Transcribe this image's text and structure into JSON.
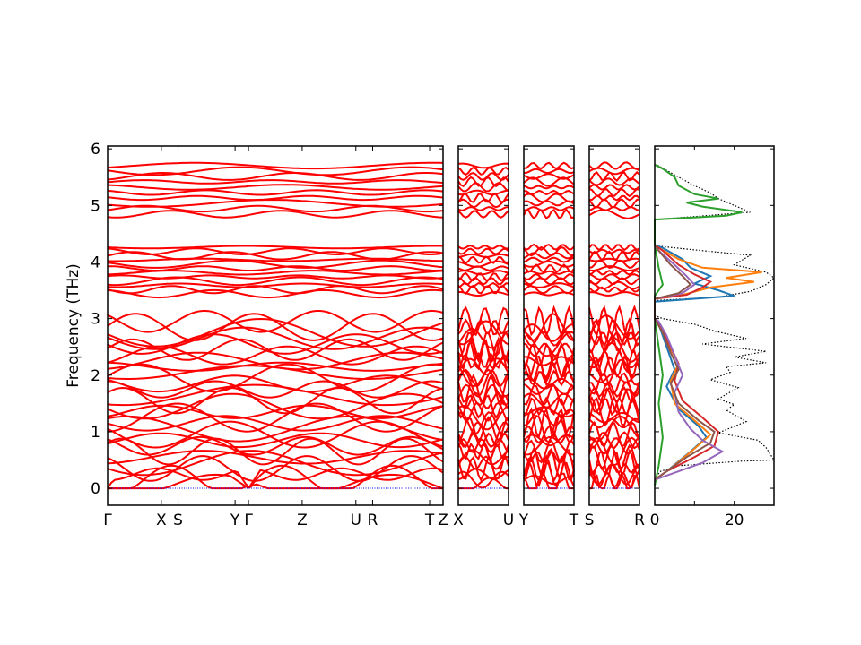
{
  "chart_data": [
    {
      "type": "line",
      "panel": "band-structure",
      "ylabel": "Frequency (THz)",
      "ylim": [
        -0.3,
        6.05
      ],
      "yticks": [
        0,
        1,
        2,
        3,
        4,
        5,
        6
      ],
      "segments": [
        {
          "labels": [
            "Γ",
            "X",
            "S",
            "Y",
            "Γ",
            "Z",
            "U",
            "R",
            "T",
            "Z"
          ],
          "positions": [
            0,
            0.16,
            0.21,
            0.38,
            0.42,
            0.58,
            0.74,
            0.79,
            0.96,
            1.0
          ]
        },
        {
          "labels": [
            "X",
            "U"
          ],
          "positions": [
            0,
            1
          ]
        },
        {
          "labels": [
            "Y",
            "T"
          ],
          "positions": [
            0,
            1
          ]
        },
        {
          "labels": [
            "S",
            "R"
          ],
          "positions": [
            0,
            1
          ]
        }
      ],
      "band_color": "#ff0000",
      "zero_line_color": "#0000ff",
      "band_groups": [
        {
          "range": [
            0.0,
            3.0
          ],
          "count": 30
        },
        {
          "range": [
            3.4,
            4.3
          ],
          "count": 12
        },
        {
          "range": [
            4.8,
            5.75
          ],
          "count": 10
        }
      ]
    },
    {
      "type": "line",
      "panel": "dos",
      "xlim": [
        0,
        30
      ],
      "xticks": [
        0,
        20
      ],
      "ylim": [
        -0.3,
        6.05
      ],
      "series": [
        {
          "color": "#000000",
          "style": "dotted",
          "points": [
            [
              0.0,
              0.1
            ],
            [
              0.3,
              0.2
            ],
            [
              1.5,
              0.3
            ],
            [
              6,
              0.4
            ],
            [
              22,
              0.48
            ],
            [
              30,
              0.5
            ],
            [
              28,
              0.72
            ],
            [
              26,
              0.85
            ],
            [
              16,
              0.98
            ],
            [
              23,
              1.18
            ],
            [
              18,
              1.38
            ],
            [
              20,
              1.48
            ],
            [
              16,
              1.58
            ],
            [
              21,
              1.78
            ],
            [
              14,
              1.92
            ],
            [
              19,
              2.05
            ],
            [
              18,
              2.15
            ],
            [
              28,
              2.22
            ],
            [
              20,
              2.32
            ],
            [
              28,
              2.42
            ],
            [
              12,
              2.55
            ],
            [
              23,
              2.65
            ],
            [
              15,
              2.78
            ],
            [
              10,
              2.9
            ],
            [
              2,
              3.0
            ],
            [
              0,
              3.05
            ],
            [
              0,
              3.32
            ],
            [
              16,
              3.38
            ],
            [
              24,
              3.48
            ],
            [
              28,
              3.6
            ],
            [
              30,
              3.72
            ],
            [
              28,
              3.82
            ],
            [
              20,
              3.95
            ],
            [
              24,
              4.12
            ],
            [
              12,
              4.2
            ],
            [
              1,
              4.28
            ],
            [
              0,
              4.3
            ],
            [
              0,
              4.75
            ],
            [
              24,
              4.88
            ],
            [
              20,
              5.0
            ],
            [
              16,
              5.12
            ],
            [
              14,
              5.22
            ],
            [
              10,
              5.35
            ],
            [
              6,
              5.5
            ],
            [
              3,
              5.62
            ],
            [
              1,
              5.7
            ],
            [
              0,
              5.72
            ]
          ]
        },
        {
          "color": "#1f77b4",
          "style": "solid",
          "points": [
            [
              0,
              0.15
            ],
            [
              3,
              0.3
            ],
            [
              9,
              0.65
            ],
            [
              13,
              0.9
            ],
            [
              11,
              1.1
            ],
            [
              6,
              1.4
            ],
            [
              3,
              1.8
            ],
            [
              5,
              2.1
            ],
            [
              3,
              2.5
            ],
            [
              1,
              2.9
            ],
            [
              0,
              3.0
            ],
            [
              0,
              3.3
            ],
            [
              10,
              3.35
            ],
            [
              20,
              3.4
            ],
            [
              16,
              3.5
            ],
            [
              10,
              3.62
            ],
            [
              14,
              3.75
            ],
            [
              9,
              3.9
            ],
            [
              7,
              4.05
            ],
            [
              2,
              4.25
            ],
            [
              0,
              4.3
            ]
          ]
        },
        {
          "color": "#ff7f0e",
          "style": "solid",
          "points": [
            [
              0,
              0.15
            ],
            [
              4,
              0.35
            ],
            [
              10,
              0.7
            ],
            [
              14,
              0.95
            ],
            [
              10,
              1.2
            ],
            [
              5,
              1.5
            ],
            [
              4,
              1.9
            ],
            [
              6,
              2.2
            ],
            [
              3,
              2.6
            ],
            [
              1,
              2.9
            ],
            [
              0,
              3.0
            ],
            [
              0,
              3.35
            ],
            [
              6,
              3.4
            ],
            [
              14,
              3.55
            ],
            [
              25,
              3.65
            ],
            [
              18,
              3.72
            ],
            [
              27,
              3.82
            ],
            [
              12,
              3.9
            ],
            [
              6,
              4.05
            ],
            [
              1,
              4.25
            ],
            [
              0,
              4.3
            ]
          ]
        },
        {
          "color": "#2ca02c",
          "style": "solid",
          "points": [
            [
              0,
              0.05
            ],
            [
              1,
              0.4
            ],
            [
              2,
              0.9
            ],
            [
              1,
              1.5
            ],
            [
              2,
              2.0
            ],
            [
              1,
              2.5
            ],
            [
              0,
              3.0
            ],
            [
              0,
              3.4
            ],
            [
              2,
              3.6
            ],
            [
              1,
              3.9
            ],
            [
              0,
              4.3
            ],
            [
              0,
              4.75
            ],
            [
              18,
              4.82
            ],
            [
              22,
              4.88
            ],
            [
              12,
              4.98
            ],
            [
              8,
              5.05
            ],
            [
              16,
              5.12
            ],
            [
              10,
              5.2
            ],
            [
              6,
              5.35
            ],
            [
              5,
              5.5
            ],
            [
              2,
              5.65
            ],
            [
              0,
              5.72
            ]
          ]
        },
        {
          "color": "#d62728",
          "style": "solid",
          "points": [
            [
              0,
              0.15
            ],
            [
              3,
              0.3
            ],
            [
              10,
              0.55
            ],
            [
              15,
              0.75
            ],
            [
              16,
              1.0
            ],
            [
              12,
              1.25
            ],
            [
              7,
              1.55
            ],
            [
              5,
              1.9
            ],
            [
              6,
              2.2
            ],
            [
              4,
              2.5
            ],
            [
              2,
              2.8
            ],
            [
              0,
              3.0
            ],
            [
              0,
              3.35
            ],
            [
              8,
              3.42
            ],
            [
              12,
              3.55
            ],
            [
              14,
              3.65
            ],
            [
              10,
              3.78
            ],
            [
              6,
              3.95
            ],
            [
              2,
              4.2
            ],
            [
              0,
              4.3
            ]
          ]
        },
        {
          "color": "#9467bd",
          "style": "solid",
          "points": [
            [
              0,
              0.15
            ],
            [
              4,
              0.25
            ],
            [
              12,
              0.45
            ],
            [
              17,
              0.65
            ],
            [
              12,
              0.85
            ],
            [
              9,
              1.05
            ],
            [
              6,
              1.35
            ],
            [
              5,
              1.7
            ],
            [
              7,
              2.0
            ],
            [
              5,
              2.35
            ],
            [
              3,
              2.7
            ],
            [
              1,
              2.95
            ],
            [
              0,
              3.0
            ],
            [
              0,
              3.35
            ],
            [
              7,
              3.45
            ],
            [
              10,
              3.6
            ],
            [
              8,
              3.75
            ],
            [
              5,
              3.95
            ],
            [
              1,
              4.2
            ],
            [
              0,
              4.3
            ]
          ]
        },
        {
          "color": "#8c564b",
          "style": "solid",
          "points": [
            [
              0,
              0.15
            ],
            [
              3,
              0.3
            ],
            [
              8,
              0.55
            ],
            [
              14,
              0.8
            ],
            [
              15,
              1.0
            ],
            [
              11,
              1.2
            ],
            [
              6,
              1.5
            ],
            [
              4,
              1.85
            ],
            [
              6,
              2.1
            ],
            [
              4,
              2.4
            ],
            [
              2,
              2.75
            ],
            [
              0,
              3.0
            ],
            [
              0,
              3.35
            ],
            [
              6,
              3.45
            ],
            [
              9,
              3.6
            ],
            [
              7,
              3.75
            ],
            [
              4,
              3.95
            ],
            [
              1,
              4.2
            ],
            [
              0,
              4.3
            ]
          ]
        }
      ]
    }
  ]
}
